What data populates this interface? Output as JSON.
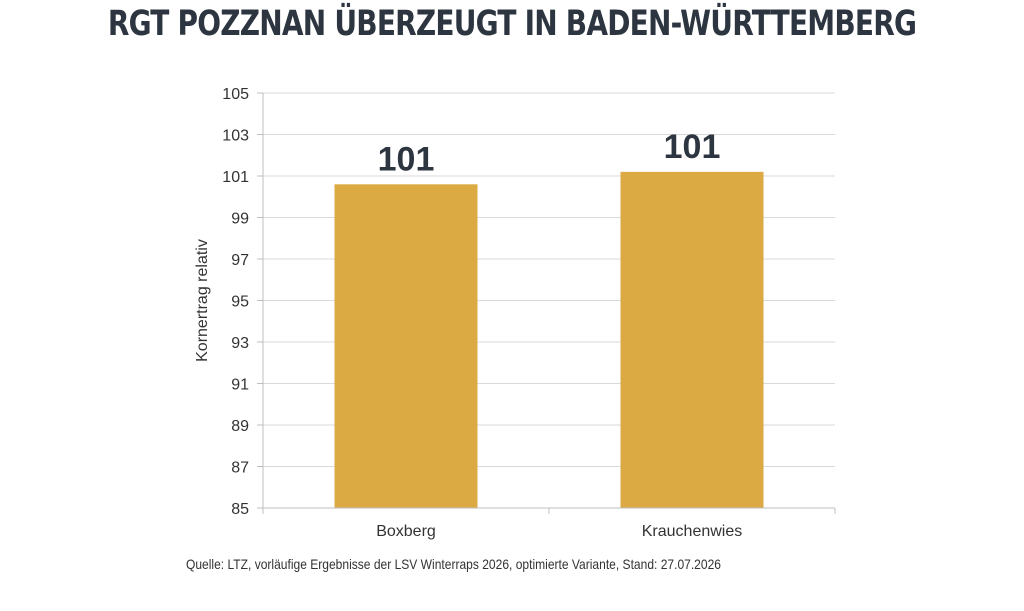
{
  "title": "RGT Pozznan überzeugt in Baden-Württemberg",
  "source": "Quelle: LTZ, vorläufige Ergebnisse der LSV Winterraps 2026, optimierte Variante, Stand: 27.07.2026",
  "colors": {
    "bar": "#dcaa43",
    "grid": "#d9d9d9",
    "axis": "#bfbfbf"
  },
  "chart_data": {
    "type": "bar",
    "title": "",
    "xlabel": "",
    "ylabel": "Kornertrag relativ",
    "categories": [
      "Boxberg",
      "Krauchenwies"
    ],
    "values": [
      100.6,
      101.2
    ],
    "data_labels": [
      "101",
      "101"
    ],
    "ylim": [
      85,
      105
    ],
    "yticks": [
      85,
      87,
      89,
      91,
      93,
      95,
      97,
      99,
      101,
      103,
      105
    ],
    "grid": true,
    "legend": "none"
  }
}
